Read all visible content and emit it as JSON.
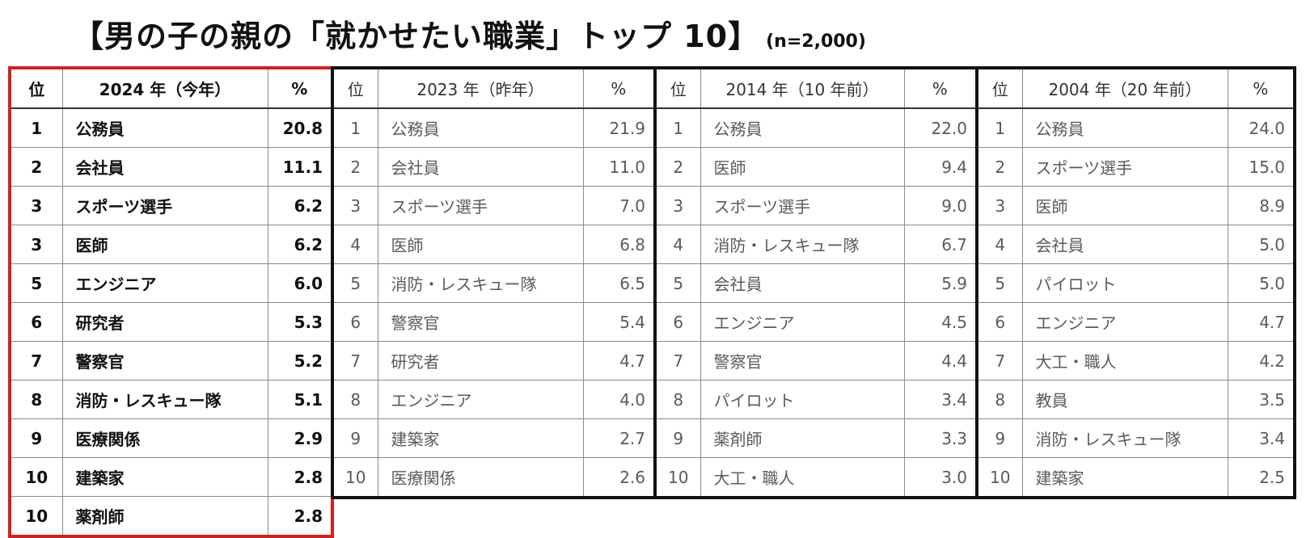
{
  "title": "【男の子の親の「就かせたい職業」トップ 10】",
  "subtitle": "(n=2,000)",
  "chart_data": {
    "type": "table",
    "tables": [
      {
        "header": [
          "位",
          "2024 年（今年）",
          "%"
        ],
        "rows": [
          [
            "1",
            "公務員",
            "20.8"
          ],
          [
            "2",
            "会社員",
            "11.1"
          ],
          [
            "3",
            "スポーツ選手",
            "6.2"
          ],
          [
            "3",
            "医師",
            "6.2"
          ],
          [
            "5",
            "エンジニア",
            "6.0"
          ],
          [
            "6",
            "研究者",
            "5.3"
          ],
          [
            "7",
            "警察官",
            "5.2"
          ],
          [
            "8",
            "消防・レスキュー隊",
            "5.1"
          ],
          [
            "9",
            "医療関係",
            "2.9"
          ],
          [
            "10",
            "建築家",
            "2.8"
          ],
          [
            "10",
            "薬剤師",
            "2.8"
          ]
        ]
      },
      {
        "header": [
          "位",
          "2023 年（昨年）",
          "%"
        ],
        "rows": [
          [
            "1",
            "公務員",
            "21.9"
          ],
          [
            "2",
            "会社員",
            "11.0"
          ],
          [
            "3",
            "スポーツ選手",
            "7.0"
          ],
          [
            "4",
            "医師",
            "6.8"
          ],
          [
            "5",
            "消防・レスキュー隊",
            "6.5"
          ],
          [
            "6",
            "警察官",
            "5.4"
          ],
          [
            "7",
            "研究者",
            "4.7"
          ],
          [
            "8",
            "エンジニア",
            "4.0"
          ],
          [
            "9",
            "建築家",
            "2.7"
          ],
          [
            "10",
            "医療関係",
            "2.6"
          ]
        ]
      },
      {
        "header": [
          "位",
          "2014 年（10 年前）",
          "%"
        ],
        "rows": [
          [
            "1",
            "公務員",
            "22.0"
          ],
          [
            "2",
            "医師",
            "9.4"
          ],
          [
            "3",
            "スポーツ選手",
            "9.0"
          ],
          [
            "4",
            "消防・レスキュー隊",
            "6.7"
          ],
          [
            "5",
            "会社員",
            "5.9"
          ],
          [
            "6",
            "エンジニア",
            "4.5"
          ],
          [
            "7",
            "警察官",
            "4.4"
          ],
          [
            "8",
            "パイロット",
            "3.4"
          ],
          [
            "9",
            "薬剤師",
            "3.3"
          ],
          [
            "10",
            "大工・職人",
            "3.0"
          ]
        ]
      },
      {
        "header": [
          "位",
          "2004 年（20 年前）",
          "%"
        ],
        "rows": [
          [
            "1",
            "公務員",
            "24.0"
          ],
          [
            "2",
            "スポーツ選手",
            "15.0"
          ],
          [
            "3",
            "医師",
            "8.9"
          ],
          [
            "4",
            "会社員",
            "5.0"
          ],
          [
            "5",
            "パイロット",
            "5.0"
          ],
          [
            "6",
            "エンジニア",
            "4.7"
          ],
          [
            "7",
            "大工・職人",
            "4.2"
          ],
          [
            "8",
            "教員",
            "3.5"
          ],
          [
            "9",
            "消防・レスキュー隊",
            "3.4"
          ],
          [
            "10",
            "建築家",
            "2.5"
          ]
        ]
      }
    ]
  }
}
